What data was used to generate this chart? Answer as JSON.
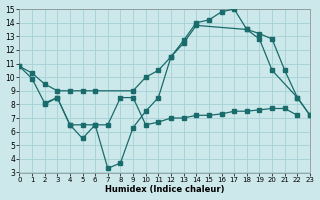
{
  "xlabel": "Humidex (Indice chaleur)",
  "bg_color": "#cce8ea",
  "grid_color": "#a8d4d8",
  "line_color": "#1a6b6b",
  "xlim": [
    0,
    23
  ],
  "ylim": [
    3,
    15
  ],
  "xticks": [
    0,
    1,
    2,
    3,
    4,
    5,
    6,
    7,
    8,
    9,
    10,
    11,
    12,
    13,
    14,
    15,
    16,
    17,
    18,
    19,
    20,
    21,
    22,
    23
  ],
  "yticks": [
    3,
    4,
    5,
    6,
    7,
    8,
    9,
    10,
    11,
    12,
    13,
    14,
    15
  ],
  "line1_x": [
    0,
    1,
    2,
    3,
    4,
    5,
    6,
    7,
    8,
    9,
    10,
    11,
    12,
    13,
    14,
    15,
    16,
    17,
    18,
    19,
    20,
    22,
    23
  ],
  "line1_y": [
    10.8,
    9.9,
    8.1,
    8.5,
    6.5,
    5.5,
    6.5,
    3.3,
    3.7,
    6.3,
    7.5,
    8.5,
    11.5,
    12.7,
    14.0,
    14.2,
    14.8,
    15.0,
    13.5,
    12.8,
    10.5,
    8.5,
    7.2
  ],
  "line2_x": [
    2,
    3,
    4,
    5,
    6,
    7,
    8,
    9,
    10,
    11,
    12,
    13,
    14,
    15,
    16,
    17,
    18,
    19,
    20,
    21,
    22
  ],
  "line2_y": [
    8.0,
    8.5,
    6.5,
    6.5,
    6.5,
    6.5,
    8.5,
    8.5,
    6.5,
    6.7,
    7.0,
    7.0,
    7.2,
    7.2,
    7.3,
    7.5,
    7.5,
    7.6,
    7.7,
    7.7,
    7.2
  ],
  "line3_x": [
    0,
    1,
    2,
    3,
    4,
    5,
    6,
    9,
    10,
    11,
    12,
    13,
    14,
    18,
    19,
    20,
    21,
    22,
    23
  ],
  "line3_y": [
    10.8,
    10.3,
    9.5,
    9.0,
    9.0,
    9.0,
    9.0,
    9.0,
    10.0,
    10.5,
    11.5,
    12.5,
    13.8,
    13.5,
    13.2,
    12.8,
    10.5,
    8.5,
    7.2
  ]
}
